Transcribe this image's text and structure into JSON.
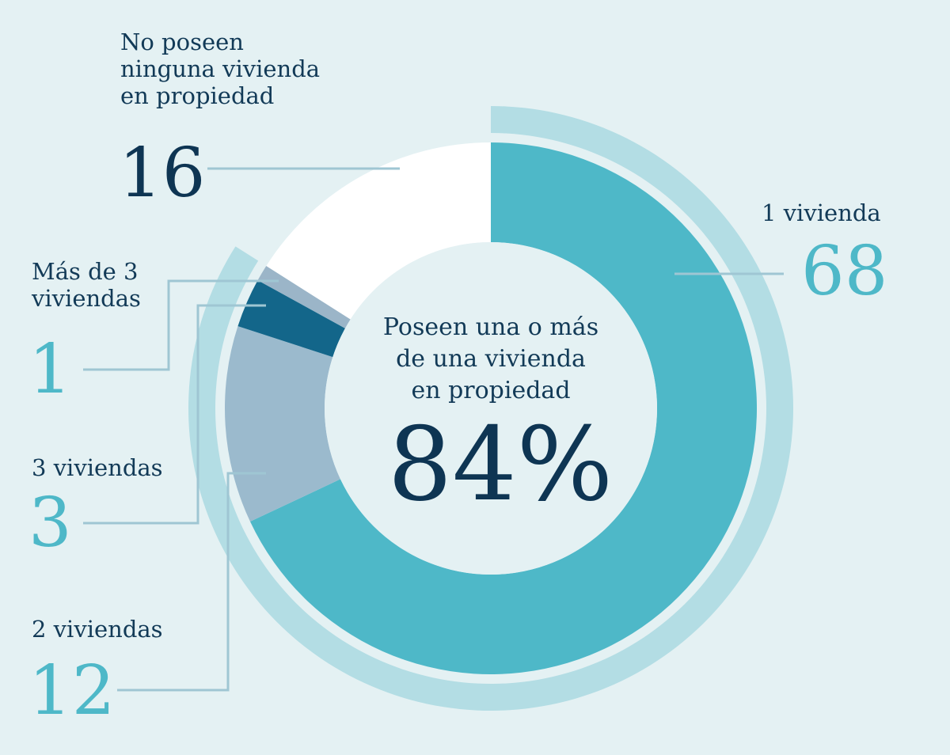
{
  "chart_data": {
    "type": "pie",
    "variant": "donut",
    "categories": [
      "1 vivienda",
      "2 viviendas",
      "3 viviendas",
      "Más de 3 viviendas",
      "No poseen ninguna vivienda en propiedad"
    ],
    "values": [
      68,
      12,
      3,
      1,
      16
    ],
    "value_labels": [
      "68",
      "12",
      "3",
      "1",
      "16"
    ],
    "colors": [
      "#4eb8c8",
      "#9bbacd",
      "#13668a",
      "#9bb5c8",
      "#ffffff"
    ],
    "center_caption": [
      "Poseen una o más",
      "de una vivienda",
      "en propiedad"
    ],
    "center_value": "84%",
    "outer_arc_color": "#b3dde4",
    "leader_color": "#9fc6d3"
  },
  "labels": {
    "none": [
      "No poseen",
      "ninguna vivienda",
      "en propiedad"
    ],
    "one": "1 vivienda",
    "more_than_three": [
      "Más de 3",
      "viviendas"
    ],
    "three": "3 viviendas",
    "two": "2 viviendas"
  },
  "numbers": {
    "none": "16",
    "one": "68",
    "more_than_three": "1",
    "three": "3",
    "two": "12"
  },
  "colors": {
    "dark_number": "#0e3553",
    "teal_number": "#4eb8c8"
  }
}
